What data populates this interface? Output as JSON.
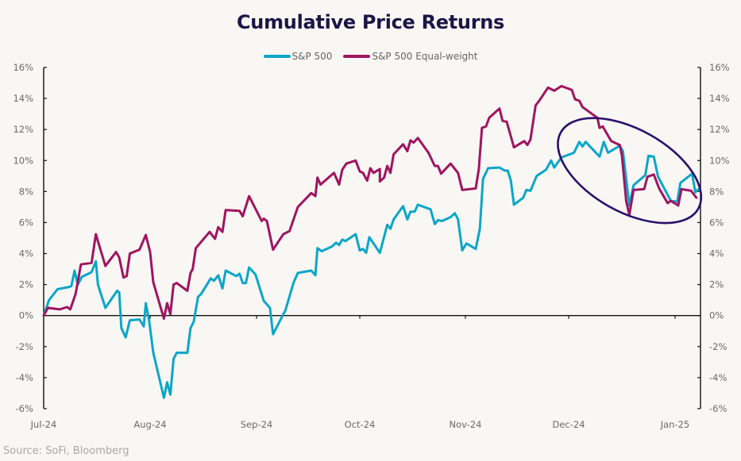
{
  "chart_data": {
    "type": "line",
    "title": "Cumulative Price Returns",
    "xlabel": "",
    "ylabel": "",
    "ylim": [
      -6,
      16
    ],
    "y_ticks": [
      "16%",
      "14%",
      "12%",
      "10%",
      "8%",
      "6%",
      "4%",
      "2%",
      "0%",
      "-2%",
      "-4%",
      "-6%"
    ],
    "y_tick_values": [
      16,
      14,
      12,
      10,
      8,
      6,
      4,
      2,
      0,
      -2,
      -4,
      -6
    ],
    "secondary_y_axis": true,
    "x_ticks": [
      "Jul-24",
      "Aug-24",
      "Sep-24",
      "Oct-24",
      "Nov-24",
      "Dec-24",
      "Jan-25"
    ],
    "x_unit": "months since Jul-24 (0 = Jul-24, 6 = Jan-25)",
    "xlim": [
      0,
      6.24
    ],
    "grid": false,
    "legend_position": "top-center",
    "annotation": {
      "type": "ellipse",
      "description": "highlight of December-January decline",
      "x_range": [
        4.88,
        6.26
      ],
      "y_range": [
        5.8,
        12.9
      ],
      "color": "#2b0f6b"
    },
    "series": [
      {
        "name": "S&P 500",
        "color": "#0ba6c9",
        "points": [
          [
            0.0,
            0.0
          ],
          [
            0.05,
            1.0
          ],
          [
            0.13,
            1.7
          ],
          [
            0.24,
            1.85
          ],
          [
            0.26,
            1.9
          ],
          [
            0.29,
            2.9
          ],
          [
            0.32,
            2.0
          ],
          [
            0.36,
            2.5
          ],
          [
            0.45,
            2.8
          ],
          [
            0.49,
            3.5
          ],
          [
            0.51,
            2.0
          ],
          [
            0.58,
            0.5
          ],
          [
            0.69,
            1.6
          ],
          [
            0.71,
            1.5
          ],
          [
            0.73,
            -0.8
          ],
          [
            0.77,
            -1.4
          ],
          [
            0.81,
            -0.3
          ],
          [
            0.9,
            -0.25
          ],
          [
            0.94,
            -0.7
          ],
          [
            0.96,
            0.8
          ],
          [
            0.99,
            -0.3
          ],
          [
            1.03,
            -2.4
          ],
          [
            1.13,
            -5.3
          ],
          [
            1.16,
            -4.3
          ],
          [
            1.19,
            -5.1
          ],
          [
            1.22,
            -2.8
          ],
          [
            1.25,
            -2.4
          ],
          [
            1.35,
            -2.4
          ],
          [
            1.38,
            -0.8
          ],
          [
            1.41,
            -0.4
          ],
          [
            1.45,
            1.2
          ],
          [
            1.48,
            1.4
          ],
          [
            1.57,
            2.4
          ],
          [
            1.6,
            2.25
          ],
          [
            1.64,
            2.6
          ],
          [
            1.68,
            1.75
          ],
          [
            1.71,
            2.9
          ],
          [
            1.81,
            2.55
          ],
          [
            1.84,
            2.7
          ],
          [
            1.87,
            2.1
          ],
          [
            1.9,
            2.1
          ],
          [
            1.93,
            3.1
          ],
          [
            1.99,
            2.65
          ],
          [
            2.07,
            0.95
          ],
          [
            2.13,
            0.5
          ],
          [
            2.16,
            -1.2
          ],
          [
            2.28,
            0.35
          ],
          [
            2.36,
            2.15
          ],
          [
            2.4,
            2.75
          ],
          [
            2.53,
            2.9
          ],
          [
            2.57,
            2.6
          ],
          [
            2.59,
            4.35
          ],
          [
            2.63,
            4.15
          ],
          [
            2.73,
            4.45
          ],
          [
            2.77,
            4.7
          ],
          [
            2.8,
            4.55
          ],
          [
            2.83,
            4.9
          ],
          [
            2.86,
            4.8
          ],
          [
            2.96,
            5.25
          ],
          [
            3.0,
            4.2
          ],
          [
            3.03,
            4.3
          ],
          [
            3.06,
            4.05
          ],
          [
            3.09,
            5.05
          ],
          [
            3.19,
            4.05
          ],
          [
            3.26,
            5.85
          ],
          [
            3.29,
            5.6
          ],
          [
            3.32,
            6.2
          ],
          [
            3.41,
            7.05
          ],
          [
            3.45,
            6.2
          ],
          [
            3.48,
            6.7
          ],
          [
            3.52,
            6.7
          ],
          [
            3.55,
            7.15
          ],
          [
            3.67,
            6.85
          ],
          [
            3.71,
            5.9
          ],
          [
            3.74,
            6.15
          ],
          [
            3.78,
            6.1
          ],
          [
            3.86,
            6.35
          ],
          [
            3.9,
            6.6
          ],
          [
            3.93,
            6.2
          ],
          [
            3.97,
            4.2
          ],
          [
            4.01,
            4.65
          ],
          [
            4.1,
            4.3
          ],
          [
            4.14,
            5.6
          ],
          [
            4.17,
            8.8
          ],
          [
            4.22,
            9.5
          ],
          [
            4.33,
            9.55
          ],
          [
            4.38,
            9.35
          ],
          [
            4.41,
            9.35
          ],
          [
            4.44,
            8.7
          ],
          [
            4.47,
            7.15
          ],
          [
            4.56,
            7.6
          ],
          [
            4.59,
            8.1
          ],
          [
            4.63,
            8.05
          ],
          [
            4.69,
            9.0
          ],
          [
            4.78,
            9.4
          ],
          [
            4.83,
            10.0
          ],
          [
            4.86,
            9.55
          ],
          [
            4.93,
            10.2
          ],
          [
            5.05,
            10.5
          ],
          [
            5.1,
            11.2
          ],
          [
            5.13,
            10.9
          ],
          [
            5.16,
            11.2
          ],
          [
            5.29,
            10.25
          ],
          [
            5.33,
            11.2
          ],
          [
            5.37,
            10.5
          ],
          [
            5.48,
            10.95
          ],
          [
            5.51,
            10.6
          ],
          [
            5.53,
            9.45
          ],
          [
            5.57,
            7.1
          ],
          [
            5.61,
            8.4
          ],
          [
            5.72,
            9.05
          ],
          [
            5.75,
            10.3
          ],
          [
            5.8,
            10.25
          ],
          [
            5.84,
            8.95
          ],
          [
            5.96,
            7.4
          ],
          [
            6.02,
            7.35
          ],
          [
            6.05,
            8.55
          ],
          [
            6.16,
            9.15
          ],
          [
            6.19,
            7.95
          ],
          [
            6.22,
            8.15
          ]
        ]
      },
      {
        "name": "S&P 500 Equal-weight",
        "color": "#a0145f",
        "points": [
          [
            0.0,
            0.0
          ],
          [
            0.04,
            0.5
          ],
          [
            0.15,
            0.4
          ],
          [
            0.22,
            0.55
          ],
          [
            0.25,
            0.4
          ],
          [
            0.3,
            1.4
          ],
          [
            0.35,
            3.3
          ],
          [
            0.45,
            3.4
          ],
          [
            0.49,
            5.25
          ],
          [
            0.51,
            4.8
          ],
          [
            0.58,
            3.2
          ],
          [
            0.68,
            4.1
          ],
          [
            0.71,
            3.75
          ],
          [
            0.75,
            2.45
          ],
          [
            0.78,
            2.55
          ],
          [
            0.81,
            4.0
          ],
          [
            0.9,
            4.25
          ],
          [
            0.96,
            5.2
          ],
          [
            1.0,
            4.1
          ],
          [
            1.03,
            2.15
          ],
          [
            1.13,
            -0.2
          ],
          [
            1.16,
            0.8
          ],
          [
            1.19,
            0.1
          ],
          [
            1.22,
            2.0
          ],
          [
            1.25,
            2.1
          ],
          [
            1.35,
            1.6
          ],
          [
            1.38,
            2.75
          ],
          [
            1.4,
            3.0
          ],
          [
            1.43,
            4.35
          ],
          [
            1.56,
            5.4
          ],
          [
            1.61,
            4.95
          ],
          [
            1.64,
            5.7
          ],
          [
            1.68,
            5.4
          ],
          [
            1.71,
            6.8
          ],
          [
            1.84,
            6.75
          ],
          [
            1.87,
            6.4
          ],
          [
            1.93,
            7.7
          ],
          [
            2.05,
            6.1
          ],
          [
            2.07,
            6.25
          ],
          [
            2.1,
            6.1
          ],
          [
            2.16,
            4.25
          ],
          [
            2.26,
            5.25
          ],
          [
            2.32,
            5.45
          ],
          [
            2.4,
            7.0
          ],
          [
            2.53,
            7.9
          ],
          [
            2.57,
            7.7
          ],
          [
            2.59,
            8.9
          ],
          [
            2.62,
            8.45
          ],
          [
            2.75,
            9.2
          ],
          [
            2.8,
            8.45
          ],
          [
            2.83,
            9.4
          ],
          [
            2.87,
            9.8
          ],
          [
            2.96,
            10.0
          ],
          [
            3.0,
            9.3
          ],
          [
            3.03,
            9.2
          ],
          [
            3.07,
            8.7
          ],
          [
            3.1,
            9.5
          ],
          [
            3.13,
            9.2
          ],
          [
            3.19,
            9.45
          ],
          [
            3.19,
            8.65
          ],
          [
            3.23,
            8.9
          ],
          [
            3.26,
            9.65
          ],
          [
            3.29,
            9.2
          ],
          [
            3.32,
            10.4
          ],
          [
            3.41,
            11.05
          ],
          [
            3.45,
            10.6
          ],
          [
            3.48,
            11.3
          ],
          [
            3.51,
            11.15
          ],
          [
            3.55,
            11.45
          ],
          [
            3.65,
            10.5
          ],
          [
            3.71,
            9.65
          ],
          [
            3.74,
            9.65
          ],
          [
            3.77,
            9.15
          ],
          [
            3.86,
            9.8
          ],
          [
            3.93,
            9.2
          ],
          [
            3.97,
            8.1
          ],
          [
            4.1,
            8.2
          ],
          [
            4.13,
            9.45
          ],
          [
            4.16,
            12.1
          ],
          [
            4.2,
            12.2
          ],
          [
            4.23,
            12.75
          ],
          [
            4.33,
            13.35
          ],
          [
            4.36,
            12.55
          ],
          [
            4.4,
            12.5
          ],
          [
            4.47,
            10.85
          ],
          [
            4.57,
            11.25
          ],
          [
            4.6,
            11.0
          ],
          [
            4.63,
            11.35
          ],
          [
            4.68,
            13.55
          ],
          [
            4.72,
            13.9
          ],
          [
            4.8,
            14.7
          ],
          [
            4.86,
            14.5
          ],
          [
            4.93,
            14.8
          ],
          [
            5.03,
            14.55
          ],
          [
            5.06,
            13.95
          ],
          [
            5.1,
            13.85
          ],
          [
            5.13,
            13.45
          ],
          [
            5.23,
            12.95
          ],
          [
            5.27,
            12.75
          ],
          [
            5.29,
            12.1
          ],
          [
            5.32,
            12.2
          ],
          [
            5.37,
            11.6
          ],
          [
            5.4,
            11.25
          ],
          [
            5.48,
            11.0
          ],
          [
            5.5,
            10.35
          ],
          [
            5.54,
            7.4
          ],
          [
            5.57,
            6.5
          ],
          [
            5.61,
            8.1
          ],
          [
            5.71,
            8.15
          ],
          [
            5.74,
            8.95
          ],
          [
            5.8,
            9.1
          ],
          [
            5.85,
            8.2
          ],
          [
            5.93,
            7.25
          ],
          [
            5.96,
            7.4
          ],
          [
            6.03,
            7.1
          ],
          [
            6.06,
            8.15
          ],
          [
            6.15,
            8.05
          ],
          [
            6.2,
            7.6
          ]
        ]
      }
    ]
  },
  "source": "Source: SoFi, Bloomberg"
}
